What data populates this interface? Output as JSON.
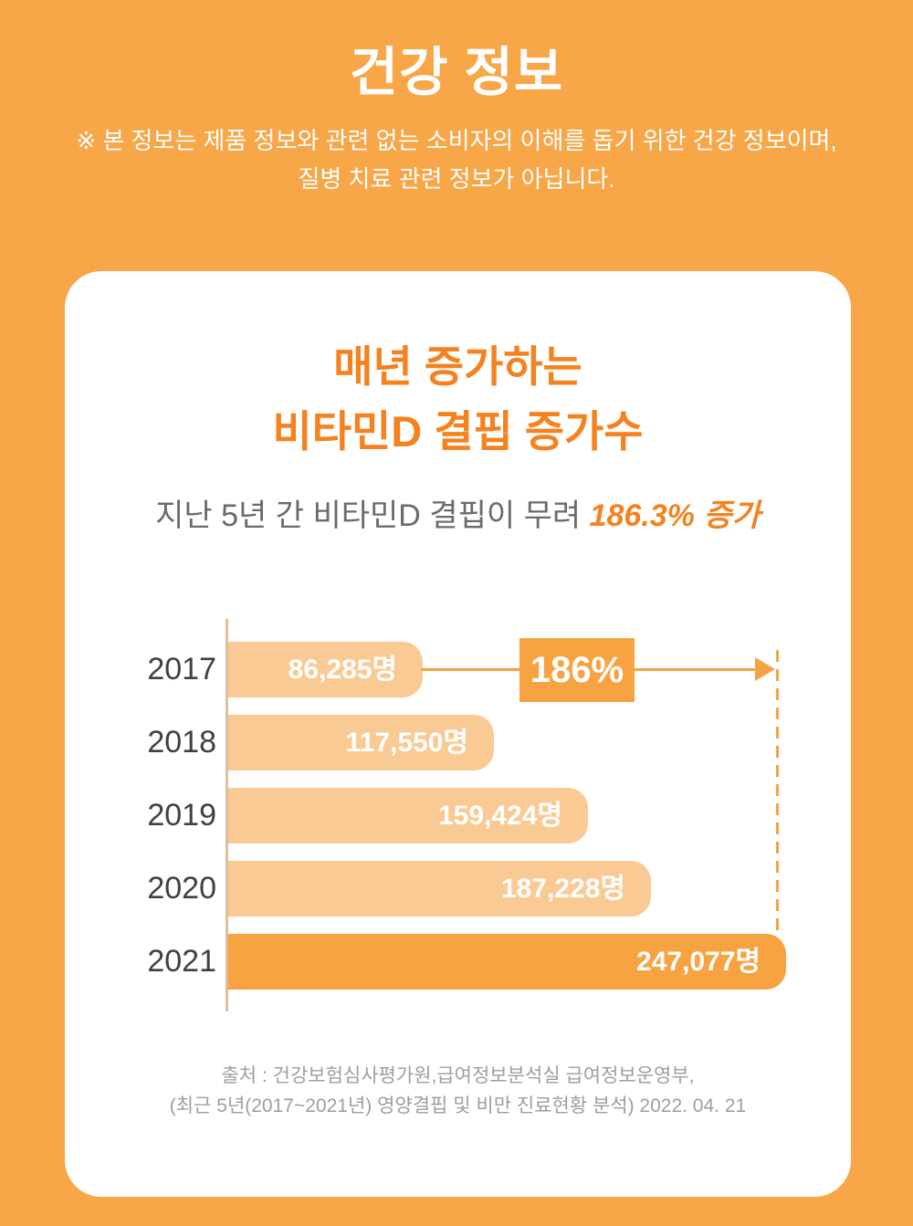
{
  "header": {
    "title": "건강 정보",
    "disclaimer_line1": "※ 본 정보는 제품 정보와 관련 없는 소비자의 이해를 돕기 위한 건강 정보이며,",
    "disclaimer_line2": "질병 치료 관련 정보가 아닙니다."
  },
  "card": {
    "title_line1": "매년 증가하는",
    "title_line2": "비타민D 결핍 증가수",
    "subtitle_prefix": "지난 5년 간 비타민D 결핍이 무려 ",
    "subtitle_highlight": "186.3% 증가",
    "source_line1": "출처 : 건강보험심사평가원,급여정보분석실 급여정보운영부,",
    "source_line2": "(최근 5년(2017~2021년) 영양결핍 및 비만 진료현황 분석) 2022. 04. 21"
  },
  "chart_data": {
    "type": "bar",
    "orientation": "horizontal",
    "title": "매년 증가하는 비타민D 결핍 증가수",
    "subtitle": "지난 5년 간 비타민D 결핍이 무려 186.3% 증가",
    "categories": [
      "2017",
      "2018",
      "2019",
      "2020",
      "2021"
    ],
    "values": [
      86285,
      117550,
      159424,
      187228,
      247077
    ],
    "value_labels": [
      "86,285명",
      "117,550명",
      "159,424명",
      "187,228명",
      "247,077명"
    ],
    "unit": "명",
    "xlim": [
      0,
      247077
    ],
    "grid": false,
    "legend": false,
    "highlight_index": 4,
    "annotation": {
      "label": "186%",
      "from_category": "2017",
      "to_category": "2021"
    }
  },
  "colors": {
    "background": "#F7A648",
    "card_background": "#FFFFFF",
    "accent_orange": "#F7A341",
    "light_bar": "#FACA94",
    "title_orange": "#F5821F",
    "subtitle_gray": "#6B6B6B",
    "year_label": "#3E4044",
    "source_gray": "#9E9E9E",
    "axis_tan": "#E2BD9D",
    "white_text": "#FFFFFF"
  }
}
